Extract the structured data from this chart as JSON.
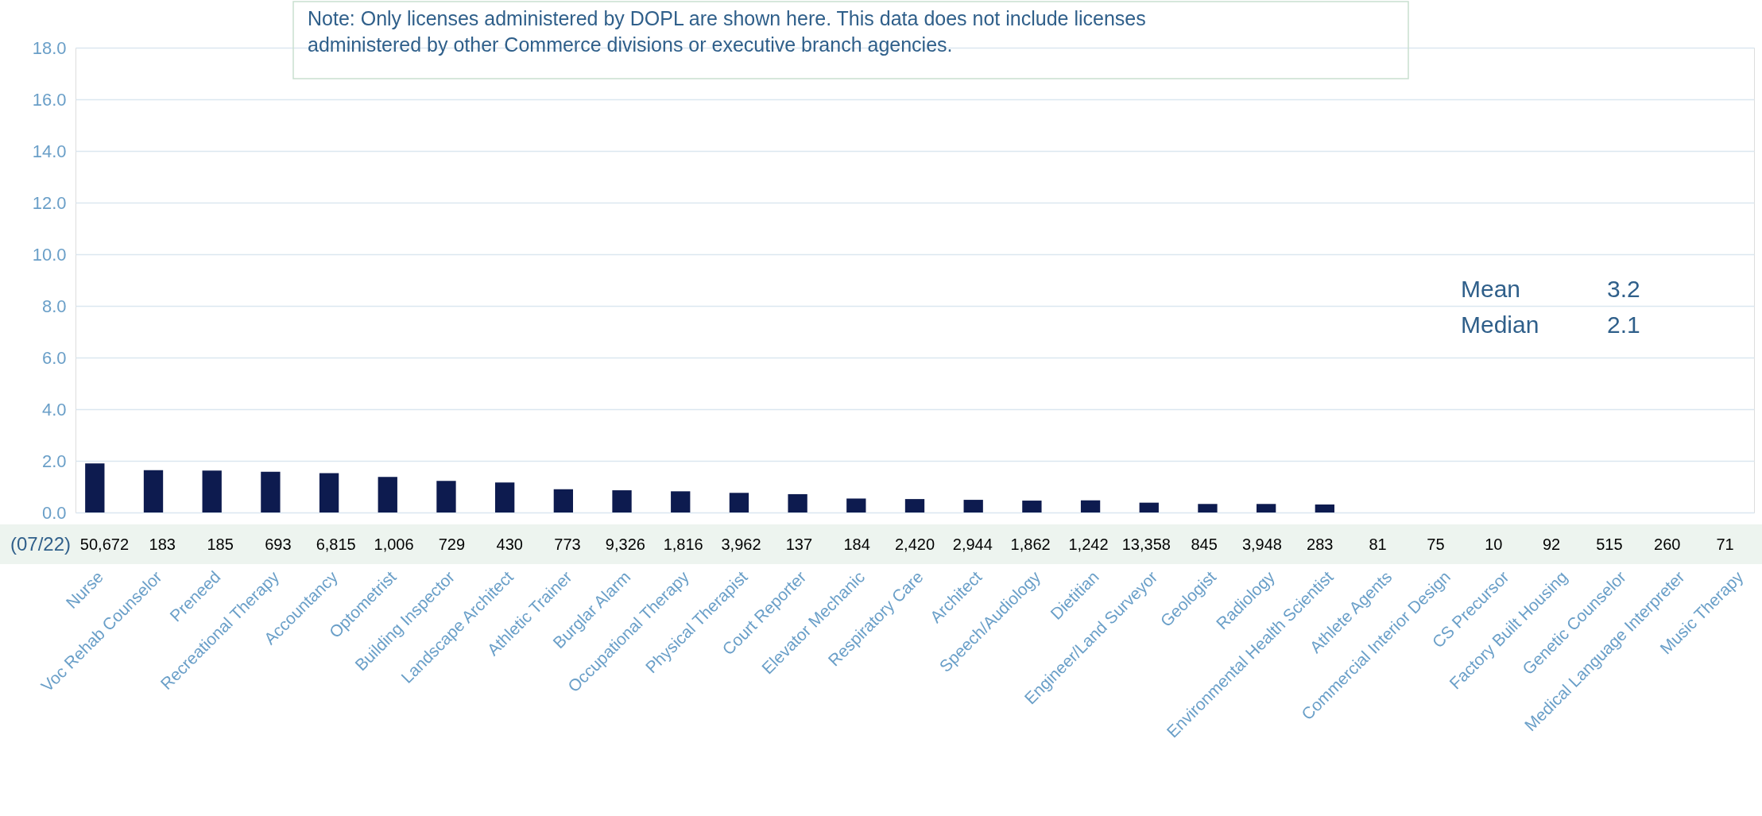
{
  "chart_data": {
    "type": "bar",
    "categories": [
      "Nurse",
      "Voc Rehab Counselor",
      "Preneed",
      "Recreational Therapy",
      "Accountancy",
      "Optometrist",
      "Building Inspector",
      "Landscape Architect",
      "Athletic Trainer",
      "Burglar Alarm",
      "Occupational Therapy",
      "Physical Therapist",
      "Court Reporter",
      "Elevator Mechanic",
      "Respiratory Care",
      "Architect",
      "Speech/Audiology",
      "Dietitian",
      "Engineer/Land Surveyor",
      "Geologist",
      "Radiology",
      "Environmental Health Scientist",
      "Athlete Agents",
      "Commercial Interior Design",
      "CS Precursor",
      "Factory Built Housing",
      "Genetic Counselor",
      "Medical Language Interpreter",
      "Music Therapy"
    ],
    "values": [
      1.9,
      1.64,
      1.62,
      1.58,
      1.52,
      1.38,
      1.22,
      1.16,
      0.9,
      0.86,
      0.82,
      0.76,
      0.71,
      0.54,
      0.52,
      0.49,
      0.46,
      0.47,
      0.38,
      0.33,
      0.33,
      0.31,
      null,
      null,
      null,
      null,
      null,
      null,
      null
    ],
    "color": "#0d1b4f",
    "ylim": [
      0,
      18
    ],
    "yticks": [
      {
        "value": 0,
        "label": "0.0"
      },
      {
        "value": 2,
        "label": "2.0"
      },
      {
        "value": 4,
        "label": "4.0"
      },
      {
        "value": 6,
        "label": "6.0"
      },
      {
        "value": 8,
        "label": "8.0"
      },
      {
        "value": 10,
        "label": "10.0"
      },
      {
        "value": 12,
        "label": "12.0"
      },
      {
        "value": 14,
        "label": "14.0"
      },
      {
        "value": 16,
        "label": "16.0"
      },
      {
        "value": 18,
        "label": "18.0"
      }
    ],
    "grid": "y",
    "annotations": [
      "Note: Only licenses administered by DOPL are shown here. This data does not include licenses administered by other Commerce divisions or executive branch agencies.",
      "(07/22)",
      "50,672",
      "183",
      "185",
      "693",
      "6,815",
      "1,006",
      "729",
      "430",
      "773",
      "9,326",
      "1,816",
      "3,962",
      "137",
      "184",
      "2,420",
      "2,944",
      "1,862",
      "1,242",
      "13,358",
      "845",
      "3,948",
      "283",
      "81",
      "75",
      "10",
      "92",
      "515",
      "260",
      "71",
      "Mean",
      "3.2",
      "Median",
      "2.1"
    ]
  }
}
